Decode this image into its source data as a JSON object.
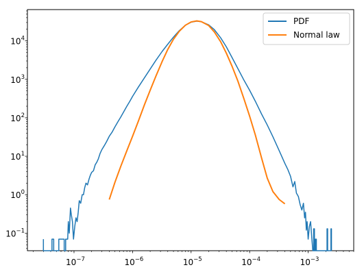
{
  "chart_data": {
    "type": "line",
    "x_scale": "log",
    "y_scale": "log",
    "xlim": [
      1.6e-08,
      0.006
    ],
    "ylim": [
      0.035,
      65000
    ],
    "grid": false,
    "legend_position": "top-right",
    "x_major_ticks": [
      1e-07,
      1e-06,
      1e-05,
      0.0001,
      0.001
    ],
    "x_tick_labels": [
      {
        "base": "10",
        "exp": "−7"
      },
      {
        "base": "10",
        "exp": "−6"
      },
      {
        "base": "10",
        "exp": "−5"
      },
      {
        "base": "10",
        "exp": "−4"
      },
      {
        "base": "10",
        "exp": "−3"
      }
    ],
    "y_major_ticks": [
      0.1,
      1,
      10,
      100,
      1000,
      10000
    ],
    "y_tick_labels": [
      {
        "base": "10",
        "exp": "−1"
      },
      {
        "base": "10",
        "exp": "0"
      },
      {
        "base": "10",
        "exp": "1"
      },
      {
        "base": "10",
        "exp": "2"
      },
      {
        "base": "10",
        "exp": "3"
      },
      {
        "base": "10",
        "exp": "4"
      }
    ],
    "series": [
      {
        "name": "PDF",
        "color": "#1f77b4",
        "points": [
          [
            3e-08,
            0.07
          ],
          [
            3e-08,
            0.035
          ],
          [
            4.2e-08,
            0.035
          ],
          [
            4.2e-08,
            0.07
          ],
          [
            4.5e-08,
            0.07
          ],
          [
            4.5e-08,
            0.035
          ],
          [
            5.5e-08,
            0.035
          ],
          [
            5.5e-08,
            0.07
          ],
          [
            6.8e-08,
            0.07
          ],
          [
            6.8e-08,
            0.035
          ],
          [
            7.2e-08,
            0.035
          ],
          [
            7.2e-08,
            0.07
          ],
          [
            7.8e-08,
            0.07
          ],
          [
            8e-08,
            0.2
          ],
          [
            8.3e-08,
            0.1
          ],
          [
            8.7e-08,
            0.45
          ],
          [
            9e-08,
            0.3
          ],
          [
            9.4e-08,
            0.2
          ],
          [
            9.8e-08,
            0.07
          ],
          [
            1.03e-07,
            0.15
          ],
          [
            1.08e-07,
            0.25
          ],
          [
            1.13e-07,
            0.2
          ],
          [
            1.18e-07,
            0.35
          ],
          [
            1.23e-07,
            0.7
          ],
          [
            1.3e-07,
            0.6
          ],
          [
            1.38e-07,
            1.0
          ],
          [
            1.45e-07,
            1.0
          ],
          [
            1.52e-07,
            1.5
          ],
          [
            1.6e-07,
            2.0
          ],
          [
            1.7e-07,
            1.8
          ],
          [
            1.8e-07,
            2.5
          ],
          [
            1.9e-07,
            3.2
          ],
          [
            2e-07,
            3.8
          ],
          [
            2.15e-07,
            4.2
          ],
          [
            2.3e-07,
            6.0
          ],
          [
            2.45e-07,
            7.0
          ],
          [
            2.6e-07,
            8.5
          ],
          [
            2.8e-07,
            12
          ],
          [
            3e-07,
            15
          ],
          [
            3.3e-07,
            19
          ],
          [
            3.6e-07,
            24
          ],
          [
            4e-07,
            33
          ],
          [
            4.5e-07,
            43
          ],
          [
            5e-07,
            58
          ],
          [
            5.6e-07,
            78
          ],
          [
            6.3e-07,
            105
          ],
          [
            7.1e-07,
            145
          ],
          [
            8e-07,
            200
          ],
          [
            9e-07,
            270
          ],
          [
            1e-06,
            360
          ],
          [
            1.25e-06,
            620
          ],
          [
            1.6e-06,
            1100
          ],
          [
            2e-06,
            1850
          ],
          [
            2.5e-06,
            3100
          ],
          [
            3.2e-06,
            5300
          ],
          [
            4e-06,
            8200
          ],
          [
            5e-06,
            12500
          ],
          [
            6.3e-06,
            18500
          ],
          [
            8e-06,
            25500
          ],
          [
            1e-05,
            30500
          ],
          [
            1.25e-05,
            32500
          ],
          [
            1.5e-05,
            31500
          ],
          [
            2e-05,
            26000
          ],
          [
            2.5e-05,
            19500
          ],
          [
            3.2e-05,
            12000
          ],
          [
            4e-05,
            7000
          ],
          [
            5e-05,
            3700
          ],
          [
            6.3e-05,
            1900
          ],
          [
            8e-05,
            950
          ],
          [
            0.0001,
            520
          ],
          [
            0.000125,
            270
          ],
          [
            0.00016,
            125
          ],
          [
            0.0002,
            65
          ],
          [
            0.00025,
            32
          ],
          [
            0.00032,
            14
          ],
          [
            0.0004,
            6.5
          ],
          [
            0.00045,
            4.5
          ],
          [
            0.0005,
            3.0
          ],
          [
            0.00055,
            1.6
          ],
          [
            0.00059,
            2.2
          ],
          [
            0.00063,
            1.1
          ],
          [
            0.00068,
            0.9
          ],
          [
            0.00073,
            0.55
          ],
          [
            0.00078,
            0.4
          ],
          [
            0.00083,
            0.6
          ],
          [
            0.00087,
            0.25
          ],
          [
            0.0009,
            0.35
          ],
          [
            0.00093,
            0.12
          ],
          [
            0.00096,
            0.2
          ],
          [
            0.001,
            0.07
          ],
          [
            0.00105,
            0.15
          ],
          [
            0.0011,
            0.2
          ],
          [
            0.00115,
            0.08
          ],
          [
            0.0012,
            0.035
          ],
          [
            0.00124,
            0.035
          ],
          [
            0.00124,
            0.13
          ],
          [
            0.00128,
            0.13
          ],
          [
            0.00128,
            0.035
          ],
          [
            0.00133,
            0.035
          ],
          [
            0.00133,
            0.07
          ],
          [
            0.00138,
            0.07
          ],
          [
            0.00138,
            0.035
          ],
          [
            0.0021,
            0.035
          ],
          [
            0.0021,
            0.13
          ],
          [
            0.00215,
            0.13
          ],
          [
            0.00215,
            0.035
          ],
          [
            0.00245,
            0.035
          ],
          [
            0.00245,
            0.13
          ],
          [
            0.0025,
            0.13
          ],
          [
            0.0025,
            0.035
          ]
        ]
      },
      {
        "name": "Normal law",
        "color": "#ff7f0e",
        "points": [
          [
            4e-07,
            0.75
          ],
          [
            5e-07,
            2.1
          ],
          [
            6.3e-07,
            5.5
          ],
          [
            8e-07,
            14
          ],
          [
            1e-06,
            33
          ],
          [
            1.25e-06,
            80
          ],
          [
            1.6e-06,
            220
          ],
          [
            2e-06,
            520
          ],
          [
            2.5e-06,
            1200
          ],
          [
            3.2e-06,
            2900
          ],
          [
            4e-06,
            6000
          ],
          [
            5e-06,
            11000
          ],
          [
            6.3e-06,
            17800
          ],
          [
            8e-06,
            25500
          ],
          [
            1e-05,
            31000
          ],
          [
            1.25e-05,
            33000
          ],
          [
            1.5e-05,
            31500
          ],
          [
            2e-05,
            25000
          ],
          [
            2.5e-05,
            17000
          ],
          [
            3.2e-05,
            9500
          ],
          [
            4e-05,
            4800
          ],
          [
            5e-05,
            2200
          ],
          [
            6.3e-05,
            900
          ],
          [
            8e-05,
            310
          ],
          [
            0.0001,
            110
          ],
          [
            0.000125,
            36
          ],
          [
            0.00016,
            9
          ],
          [
            0.0002,
            2.7
          ],
          [
            0.00025,
            1.2
          ],
          [
            0.00032,
            0.75
          ],
          [
            0.0004,
            0.58
          ]
        ]
      }
    ]
  }
}
